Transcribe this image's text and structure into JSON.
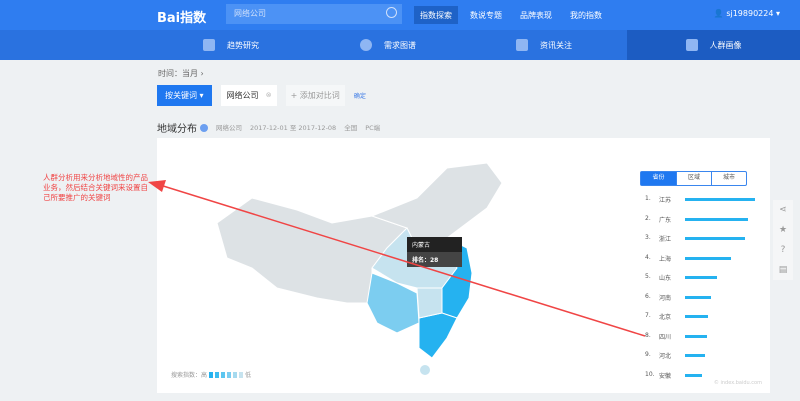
{
  "header": {
    "logo": "Bai指数",
    "search_value": "网络公司",
    "nav": [
      "指数探索",
      "数说专题",
      "品牌表现",
      "我的指数"
    ],
    "active_nav": 0,
    "user": "sj19890224 ▾"
  },
  "subnav": [
    {
      "label": "趋势研究"
    },
    {
      "label": "需求图谱"
    },
    {
      "label": "资讯关注"
    },
    {
      "label": "人群画像"
    }
  ],
  "filters": {
    "time": "时间：当月 ›",
    "mode_button": "按关键词 ▾",
    "keyword": "网络公司",
    "add_compare": "+ 添加对比词",
    "confirm": "确定"
  },
  "section": {
    "title": "地域分布",
    "keyword": "网络公司",
    "range": "2017-12-01 至 2017-12-08",
    "region": "全国",
    "device": "PC端"
  },
  "map": {
    "tooltip_region": "内蒙古",
    "tooltip_rank": "排名：28",
    "legend_label": "搜索指数：高",
    "legend_low": "低",
    "colors": {
      "high": "#25b2f0",
      "mid": "#7ccdf0",
      "low": "#c6e3ef",
      "none": "#dde2e5"
    }
  },
  "ranking": {
    "tabs": [
      "省份",
      "区域",
      "城市"
    ],
    "active_tab": 0,
    "items": [
      {
        "rank": "1.",
        "name": "江苏",
        "value": 100
      },
      {
        "rank": "2.",
        "name": "广东",
        "value": 90
      },
      {
        "rank": "3.",
        "name": "浙江",
        "value": 85
      },
      {
        "rank": "4.",
        "name": "上海",
        "value": 65
      },
      {
        "rank": "5.",
        "name": "山东",
        "value": 45
      },
      {
        "rank": "6.",
        "name": "河南",
        "value": 37
      },
      {
        "rank": "7.",
        "name": "北京",
        "value": 33
      },
      {
        "rank": "8.",
        "name": "四川",
        "value": 31
      },
      {
        "rank": "9.",
        "name": "河北",
        "value": 28
      },
      {
        "rank": "10.",
        "name": "安徽",
        "value": 24
      }
    ],
    "watermark": "© index.baidu.com"
  },
  "annotation": {
    "text": "人群分析用来分析地域性的产品业务，然后结合关键词来设置自己所要推广的关键词",
    "color": "#f04545"
  }
}
